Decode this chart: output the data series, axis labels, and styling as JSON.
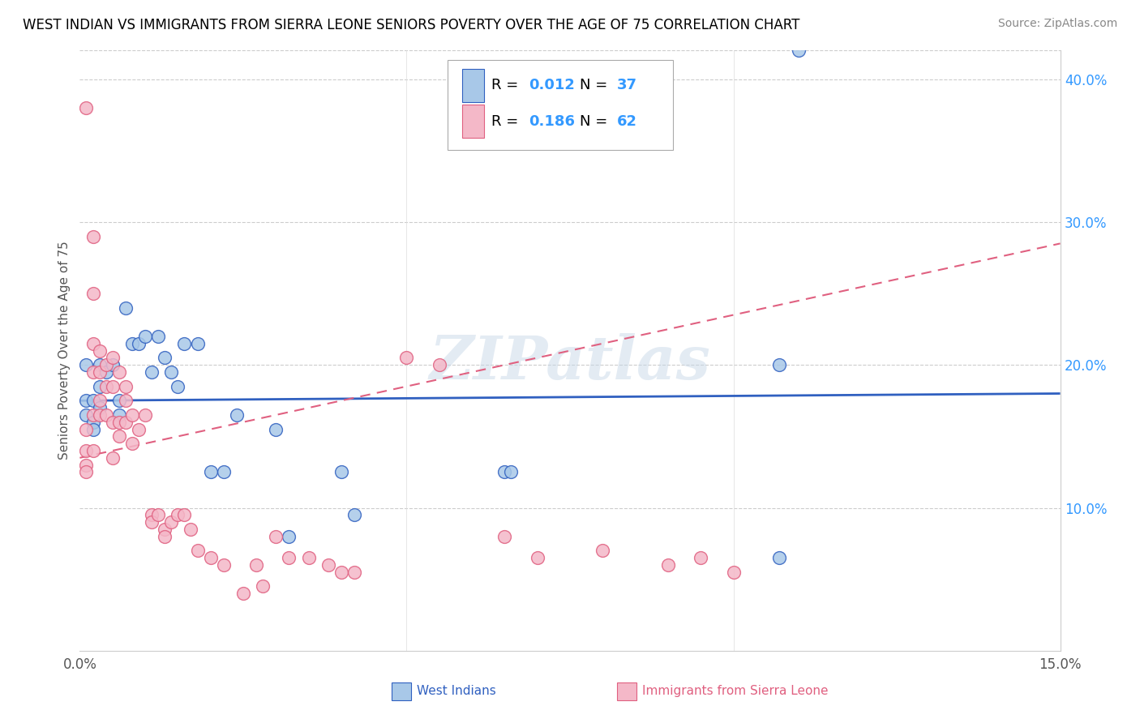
{
  "title": "WEST INDIAN VS IMMIGRANTS FROM SIERRA LEONE SENIORS POVERTY OVER THE AGE OF 75 CORRELATION CHART",
  "source": "Source: ZipAtlas.com",
  "ylabel": "Seniors Poverty Over the Age of 75",
  "xlim": [
    0.0,
    0.15
  ],
  "ylim": [
    0.0,
    0.42
  ],
  "color_blue": "#a8c8e8",
  "color_pink": "#f4b8c8",
  "color_blue_line": "#3060c0",
  "color_pink_line": "#e06080",
  "color_legend_text": "#3399ff",
  "watermark": "ZIPatlas",
  "background_color": "#ffffff",
  "wi_line_x0": 0.0,
  "wi_line_y0": 0.175,
  "wi_line_x1": 0.15,
  "wi_line_y1": 0.18,
  "sl_line_x0": 0.0,
  "sl_line_y0": 0.135,
  "sl_line_x1": 0.15,
  "sl_line_y1": 0.285,
  "west_indians_x": [
    0.001,
    0.001,
    0.001,
    0.002,
    0.002,
    0.002,
    0.003,
    0.003,
    0.003,
    0.004,
    0.005,
    0.006,
    0.006,
    0.007,
    0.008,
    0.009,
    0.01,
    0.011,
    0.012,
    0.013,
    0.014,
    0.015,
    0.016,
    0.018,
    0.02,
    0.022,
    0.024,
    0.03,
    0.032,
    0.04,
    0.042,
    0.065,
    0.066,
    0.107,
    0.11,
    0.107
  ],
  "west_indians_y": [
    0.175,
    0.2,
    0.165,
    0.175,
    0.16,
    0.155,
    0.2,
    0.185,
    0.17,
    0.195,
    0.2,
    0.175,
    0.165,
    0.24,
    0.215,
    0.215,
    0.22,
    0.195,
    0.22,
    0.205,
    0.195,
    0.185,
    0.215,
    0.215,
    0.125,
    0.125,
    0.165,
    0.155,
    0.08,
    0.125,
    0.095,
    0.125,
    0.125,
    0.2,
    0.42,
    0.065
  ],
  "sierra_leone_x": [
    0.001,
    0.001,
    0.001,
    0.001,
    0.001,
    0.002,
    0.002,
    0.002,
    0.002,
    0.002,
    0.002,
    0.003,
    0.003,
    0.003,
    0.003,
    0.004,
    0.004,
    0.004,
    0.005,
    0.005,
    0.005,
    0.005,
    0.006,
    0.006,
    0.006,
    0.007,
    0.007,
    0.007,
    0.008,
    0.008,
    0.009,
    0.01,
    0.011,
    0.011,
    0.012,
    0.013,
    0.013,
    0.014,
    0.015,
    0.016,
    0.017,
    0.018,
    0.02,
    0.022,
    0.025,
    0.027,
    0.028,
    0.03,
    0.032,
    0.035,
    0.038,
    0.04,
    0.042,
    0.05,
    0.055,
    0.06,
    0.065,
    0.07,
    0.08,
    0.09,
    0.095,
    0.1
  ],
  "sierra_leone_y": [
    0.38,
    0.155,
    0.14,
    0.13,
    0.125,
    0.29,
    0.25,
    0.215,
    0.195,
    0.165,
    0.14,
    0.21,
    0.195,
    0.175,
    0.165,
    0.2,
    0.185,
    0.165,
    0.205,
    0.185,
    0.16,
    0.135,
    0.195,
    0.16,
    0.15,
    0.185,
    0.175,
    0.16,
    0.165,
    0.145,
    0.155,
    0.165,
    0.095,
    0.09,
    0.095,
    0.085,
    0.08,
    0.09,
    0.095,
    0.095,
    0.085,
    0.07,
    0.065,
    0.06,
    0.04,
    0.06,
    0.045,
    0.08,
    0.065,
    0.065,
    0.06,
    0.055,
    0.055,
    0.205,
    0.2,
    0.37,
    0.08,
    0.065,
    0.07,
    0.06,
    0.065,
    0.055
  ]
}
